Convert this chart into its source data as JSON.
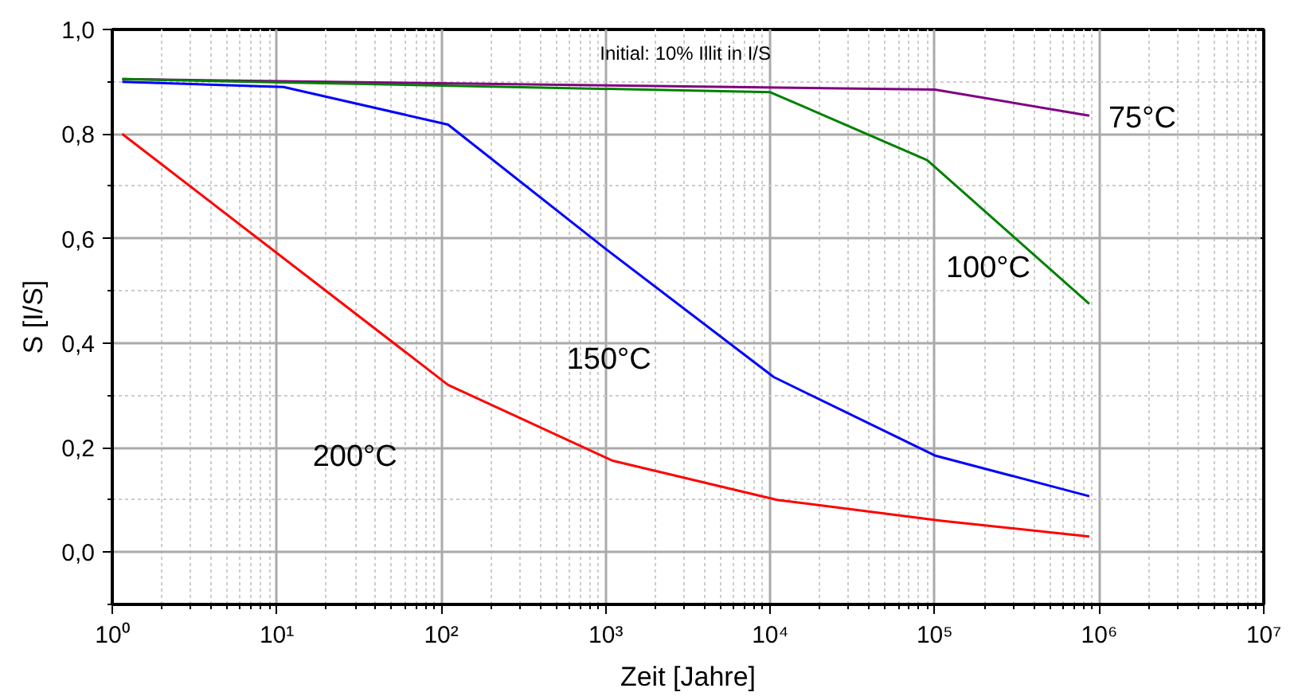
{
  "chart_data": {
    "type": "line",
    "xlabel": "Zeit [Jahre]",
    "ylabel": "S [I/S]",
    "annotations": [
      "Initial:  10% Illit in I/S"
    ],
    "log": "x",
    "grid": true,
    "xlim": [
      1,
      10000000
    ],
    "ylim": [
      -0.1,
      1.0
    ],
    "xticks": [
      {
        "value": 1,
        "label": "10⁰"
      },
      {
        "value": 10,
        "label": "10¹"
      },
      {
        "value": 100,
        "label": "10²"
      },
      {
        "value": 1000,
        "label": "10³"
      },
      {
        "value": 10000,
        "label": "10⁴"
      },
      {
        "value": 100000,
        "label": "10⁵"
      },
      {
        "value": 1000000,
        "label": "10⁶"
      },
      {
        "value": 10000000,
        "label": "10⁷"
      }
    ],
    "yticks": [
      {
        "value": 0.0,
        "label": "0,0"
      },
      {
        "value": 0.2,
        "label": "0,2"
      },
      {
        "value": 0.4,
        "label": "0,4"
      },
      {
        "value": 0.6,
        "label": "0,6"
      },
      {
        "value": 0.8,
        "label": "0,8"
      },
      {
        "value": 1.0,
        "label": "1,0"
      }
    ],
    "series": [
      {
        "name": "75°C",
        "color": "#800080",
        "x": [
          1.15,
          100000,
          870000
        ],
        "values": [
          0.905,
          0.885,
          0.835
        ]
      },
      {
        "name": "100°C",
        "color": "#008000",
        "x": [
          1.15,
          10000,
          90000,
          870000
        ],
        "values": [
          0.905,
          0.88,
          0.75,
          0.475
        ]
      },
      {
        "name": "150°C",
        "color": "#0000ff",
        "x": [
          1.15,
          11,
          110,
          1000,
          10500,
          100000,
          870000
        ],
        "values": [
          0.9,
          0.89,
          0.818,
          0.58,
          0.335,
          0.185,
          0.107
        ]
      },
      {
        "name": "200°C",
        "color": "#ff0000",
        "x": [
          1.15,
          110,
          1100,
          11000,
          110000,
          870000
        ],
        "values": [
          0.8,
          0.32,
          0.175,
          0.1,
          0.06,
          0.03
        ]
      }
    ]
  }
}
